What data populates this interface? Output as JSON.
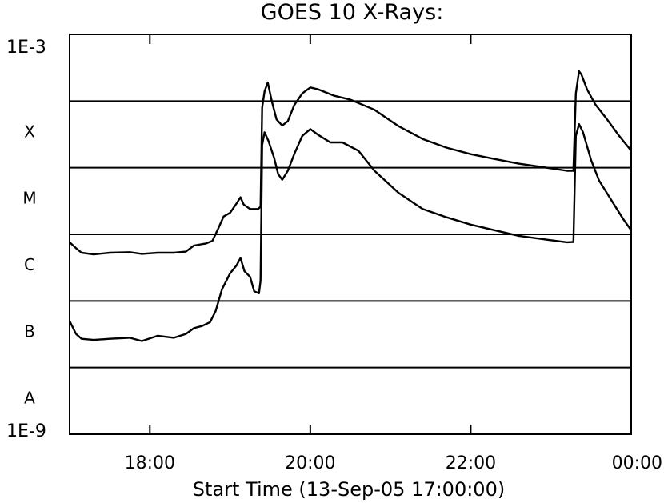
{
  "chart_data": {
    "type": "line",
    "title": "GOES 10 X-Rays:",
    "xlabel": "Start Time (13-Sep-05 17:00:00)",
    "ylabel": "",
    "y_scale": "log",
    "xlim_hours_after_start": [
      0,
      7
    ],
    "ylim": [
      "1E-9",
      "1E-3"
    ],
    "y_limit_labels": [
      "1E-3",
      "1E-9"
    ],
    "x_tick_labels": [
      {
        "hour": 1,
        "label": "18:00"
      },
      {
        "hour": 3,
        "label": "20:00"
      },
      {
        "hour": 5,
        "label": "22:00"
      },
      {
        "hour": 7,
        "label": "00:00"
      }
    ],
    "class_levels": [
      {
        "label": "X",
        "value": 0.0001
      },
      {
        "label": "M",
        "value": 1e-05
      },
      {
        "label": "C",
        "value": 1e-06
      },
      {
        "label": "B",
        "value": 1e-07
      },
      {
        "label": "A",
        "value": 1e-08
      }
    ],
    "grid": "class level lines only",
    "series": [
      {
        "points": [
          [
            0.0,
            7.6e-07
          ],
          [
            0.08,
            6.2e-07
          ],
          [
            0.15,
            5.3e-07
          ],
          [
            0.3,
            5e-07
          ],
          [
            0.5,
            5.3e-07
          ],
          [
            0.75,
            5.4e-07
          ],
          [
            0.9,
            5.1e-07
          ],
          [
            1.1,
            5.3e-07
          ],
          [
            1.3,
            5.3e-07
          ],
          [
            1.45,
            5.5e-07
          ],
          [
            1.55,
            6.8e-07
          ],
          [
            1.7,
            7.3e-07
          ],
          [
            1.78,
            8e-07
          ],
          [
            1.85,
            1.2e-06
          ],
          [
            1.92,
            1.85e-06
          ],
          [
            2.0,
            2.1e-06
          ],
          [
            2.08,
            2.9e-06
          ],
          [
            2.13,
            3.6e-06
          ],
          [
            2.17,
            2.8e-06
          ],
          [
            2.25,
            2.4e-06
          ],
          [
            2.35,
            2.4e-06
          ],
          [
            2.38,
            2.6e-06
          ],
          [
            2.4,
            8e-05
          ],
          [
            2.43,
            0.00014
          ],
          [
            2.47,
            0.00019
          ],
          [
            2.52,
            0.0001
          ],
          [
            2.58,
            5.3e-05
          ],
          [
            2.65,
            4.3e-05
          ],
          [
            2.72,
            5e-05
          ],
          [
            2.8,
            8.7e-05
          ],
          [
            2.9,
            0.00013
          ],
          [
            3.0,
            0.00016
          ],
          [
            3.1,
            0.00015
          ],
          [
            3.3,
            0.00012
          ],
          [
            3.5,
            0.000105
          ],
          [
            3.8,
            7.4e-05
          ],
          [
            4.1,
            4.2e-05
          ],
          [
            4.4,
            2.7e-05
          ],
          [
            4.7,
            2e-05
          ],
          [
            5.0,
            1.6e-05
          ],
          [
            5.3,
            1.35e-05
          ],
          [
            5.6,
            1.15e-05
          ],
          [
            5.95,
            1e-05
          ],
          [
            6.2,
            9e-06
          ],
          [
            6.28,
            9e-06
          ],
          [
            6.31,
            0.00013
          ],
          [
            6.35,
            0.00028
          ],
          [
            6.38,
            0.00025
          ],
          [
            6.45,
            0.00015
          ],
          [
            6.55,
            9e-05
          ],
          [
            6.7,
            5.3e-05
          ],
          [
            6.85,
            3e-05
          ],
          [
            7.0,
            1.8e-05
          ]
        ]
      },
      {
        "points": [
          [
            0.0,
            5e-08
          ],
          [
            0.08,
            3.2e-08
          ],
          [
            0.15,
            2.7e-08
          ],
          [
            0.3,
            2.6e-08
          ],
          [
            0.5,
            2.7e-08
          ],
          [
            0.75,
            2.8e-08
          ],
          [
            0.9,
            2.5e-08
          ],
          [
            1.1,
            3e-08
          ],
          [
            1.3,
            2.8e-08
          ],
          [
            1.45,
            3.2e-08
          ],
          [
            1.55,
            3.9e-08
          ],
          [
            1.65,
            4.2e-08
          ],
          [
            1.75,
            4.8e-08
          ],
          [
            1.82,
            7e-08
          ],
          [
            1.9,
            1.5e-07
          ],
          [
            2.0,
            2.6e-07
          ],
          [
            2.08,
            3.4e-07
          ],
          [
            2.13,
            4.4e-07
          ],
          [
            2.18,
            2.8e-07
          ],
          [
            2.25,
            2.3e-07
          ],
          [
            2.3,
            1.4e-07
          ],
          [
            2.36,
            1.3e-07
          ],
          [
            2.38,
            2e-07
          ],
          [
            2.4,
            2.2e-05
          ],
          [
            2.43,
            3.4e-05
          ],
          [
            2.48,
            2.5e-05
          ],
          [
            2.55,
            1.4e-05
          ],
          [
            2.6,
            8e-06
          ],
          [
            2.65,
            6.6e-06
          ],
          [
            2.72,
            9e-06
          ],
          [
            2.8,
            1.6e-05
          ],
          [
            2.9,
            3e-05
          ],
          [
            3.0,
            3.8e-05
          ],
          [
            3.1,
            3.1e-05
          ],
          [
            3.25,
            2.4e-05
          ],
          [
            3.4,
            2.4e-05
          ],
          [
            3.6,
            1.8e-05
          ],
          [
            3.8,
            9e-06
          ],
          [
            4.1,
            4.2e-06
          ],
          [
            4.4,
            2.4e-06
          ],
          [
            4.7,
            1.8e-06
          ],
          [
            5.0,
            1.4e-06
          ],
          [
            5.3,
            1.15e-06
          ],
          [
            5.6,
            9.5e-07
          ],
          [
            5.95,
            8.3e-07
          ],
          [
            6.2,
            7.6e-07
          ],
          [
            6.28,
            7.7e-07
          ],
          [
            6.31,
            3e-05
          ],
          [
            6.35,
            4.5e-05
          ],
          [
            6.4,
            3.4e-05
          ],
          [
            6.5,
            1.3e-05
          ],
          [
            6.6,
            6.4e-06
          ],
          [
            6.75,
            3.3e-06
          ],
          [
            6.9,
            1.7e-06
          ],
          [
            7.0,
            1.15e-06
          ]
        ]
      }
    ]
  }
}
